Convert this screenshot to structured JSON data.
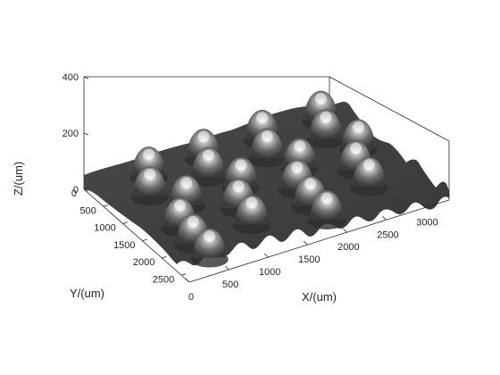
{
  "chart_data": {
    "type": "surface",
    "title": "",
    "xlabel": "X/(um)",
    "ylabel": "Y/(um)",
    "zlabel": "Z/(um)",
    "xlim": [
      0,
      3300
    ],
    "ylim": [
      0,
      2700
    ],
    "zlim": [
      0,
      400
    ],
    "x_ticks": [
      0,
      500,
      1000,
      1500,
      2000,
      2500,
      3000
    ],
    "y_ticks": [
      0,
      500,
      1000,
      1500,
      2000,
      2500
    ],
    "z_ticks": [
      0,
      200,
      400
    ],
    "grid": false,
    "colormap": "gray",
    "box": true,
    "domes": {
      "diameter_um": 300,
      "height_um": 250,
      "count": 22,
      "centers": [
        {
          "x": 2950,
          "y": 120
        },
        {
          "x": 2200,
          "y": 130
        },
        {
          "x": 1450,
          "y": 140
        },
        {
          "x": 750,
          "y": 150
        },
        {
          "x": 2800,
          "y": 550
        },
        {
          "x": 2050,
          "y": 560
        },
        {
          "x": 1300,
          "y": 570
        },
        {
          "x": 550,
          "y": 580
        },
        {
          "x": 3000,
          "y": 980
        },
        {
          "x": 2250,
          "y": 990
        },
        {
          "x": 1500,
          "y": 1000
        },
        {
          "x": 800,
          "y": 1010
        },
        {
          "x": 2750,
          "y": 1420
        },
        {
          "x": 2000,
          "y": 1430
        },
        {
          "x": 1250,
          "y": 1440
        },
        {
          "x": 500,
          "y": 1450
        },
        {
          "x": 2700,
          "y": 1860
        },
        {
          "x": 1950,
          "y": 1870
        },
        {
          "x": 1200,
          "y": 1880
        },
        {
          "x": 450,
          "y": 1890
        },
        {
          "x": 1950,
          "y": 2290
        },
        {
          "x": 450,
          "y": 2310
        }
      ]
    }
  }
}
